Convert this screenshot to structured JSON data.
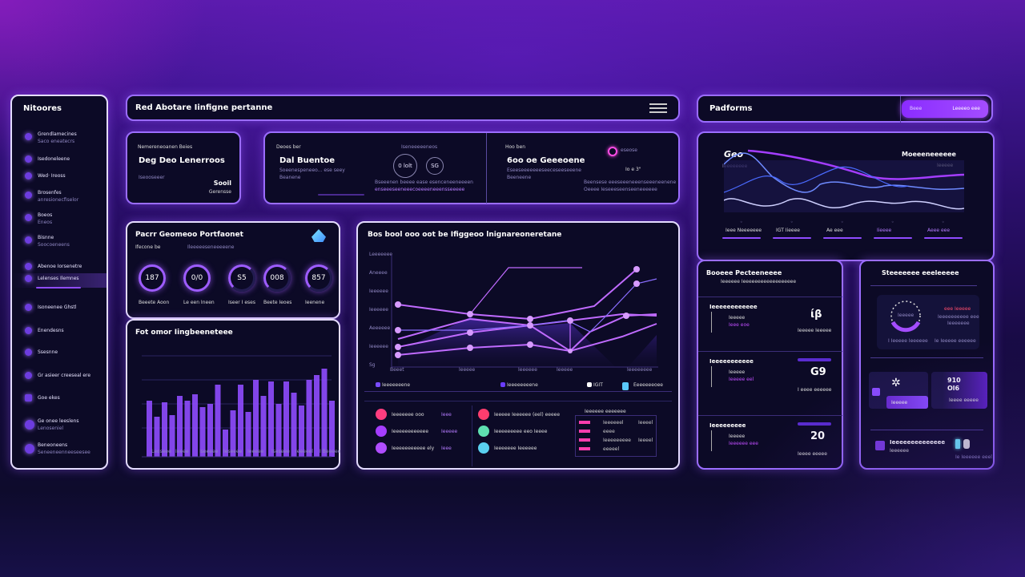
{
  "sidebar": {
    "title": "Nitoores",
    "items": [
      {
        "label": "Grendlamecines",
        "sub": "Saco eneatecrs"
      },
      {
        "label": "Isedoneleene",
        "sub": ""
      },
      {
        "label": "Wed· Ireoss",
        "sub": ""
      },
      {
        "label": "Brosenfes",
        "sub": "anresionecfiselor"
      },
      {
        "label": "Boeos",
        "sub": "Eneos"
      },
      {
        "label": "Bisnne",
        "sub": "Soocoeneens"
      },
      {
        "label": "Abenoe Iorsenetre",
        "sub": ""
      },
      {
        "label": "Lelenses Ilemnes",
        "sub": "",
        "active": true
      },
      {
        "label": "Isoneenee Ghstl",
        "sub": ""
      },
      {
        "label": "Enendesns",
        "sub": ""
      },
      {
        "label": "Ssesnne",
        "sub": ""
      },
      {
        "label": "Gr asieer creeseal ere",
        "sub": ""
      },
      {
        "label": "Goe ekes",
        "sub": ""
      },
      {
        "label": "Ge onee leeslens",
        "sub": "Lenoseniel"
      },
      {
        "label": "Beneoneens",
        "sub": "Seneeneenneeseesee"
      }
    ]
  },
  "header": {
    "title": "Red Abotare Iinfigne pertanne",
    "menu_icon": "hamburger-icon"
  },
  "kpi_cards": [
    {
      "label": "Nemereneoanen Beies",
      "value": "Deg Deo Lenerroos",
      "sub1": "eeneseneceecens",
      "sub2": "Iseooseeer",
      "foot_value": "Sooil",
      "foot_label": "Gerensse"
    },
    {
      "label": "Deoes ber",
      "value": "Dal Buentoe",
      "sub1": "Soeenespeneeo... ese seey",
      "sub2": "Beanene",
      "badge": "Iseneeeeeneos",
      "ring1": "0 lolt",
      "ring2": "SG",
      "foot1": "Bseeenen beeee ease esenceneeneeeen",
      "foot2": "enseeeseeneeecoeeeeneeensseeeee"
    },
    {
      "label": "Hoo ben",
      "value": "6oo oe Geeeoene",
      "sub1": "Eseeseeeeeeeseeceseeseeene",
      "sub2": "Beeneene",
      "badge": "eseose",
      "center": "Io e 3\"",
      "foot1": "Beensese eeeseeeneeenseeeneenene",
      "foot2": "Oeeee Ieseeeseenseeneeeeee"
    }
  ],
  "progress_panel": {
    "title": "Pacrr Geomeoo Portfaonet",
    "subtitle_left": "Ifecone be",
    "subtitle_right": "Ileeeeeseneeeeene",
    "rings": [
      {
        "value": "187",
        "label": "Beeete Aoon"
      },
      {
        "value": "0/0",
        "label": "Le een Ineen"
      },
      {
        "value": "S5",
        "label": "Iseer I eses"
      },
      {
        "value": "008",
        "label": "Beete Ieoes"
      },
      {
        "value": "857",
        "label": "Ieenene"
      }
    ]
  },
  "bar_panel": {
    "title": "Fot omor Iingbeeneteee",
    "x_labels": [
      "Leoseee",
      "Ieeee",
      "Iseeeee",
      "Ieseeee",
      "Ieeeee",
      "Iseseee",
      "Ieeeeel",
      "I Beeeee"
    ]
  },
  "line_panel": {
    "title": "Bos bool ooo oot be Ifiggeoo lnignareoneretane",
    "y_labels": [
      "Leeeeeee",
      "Aneeee",
      "Ieeeeee",
      "Ieeeeee",
      "Aeeeeee",
      "Ieeeeee",
      "Sg"
    ],
    "x_labels": [
      "Beeet",
      "Ieeeee",
      "Ieeeeee",
      "Ieeeee",
      "Ieeeeeeee"
    ],
    "legend": [
      {
        "label": "Ieeeeeeene",
        "color": "#7a4cff"
      },
      {
        "label": "Ieeeeeeeene",
        "color": "#6a3cff"
      },
      {
        "label": "IGIT",
        "color": "#ffffff"
      },
      {
        "label": "Eeeeeeeoee",
        "color": "#5ac8fa"
      }
    ],
    "list_left": [
      {
        "label": "Ieeeeeee ooo",
        "value": "Ieee",
        "color": "#ff3d7f"
      },
      {
        "label": "Ieeeeeeeeeeee",
        "value": "Ieeeee",
        "color": "#a53dff"
      },
      {
        "label": "Ieeeeeeeeeee ely",
        "value": "Ieee",
        "color": "#b04dff"
      }
    ],
    "list_mid": [
      {
        "label": "Ieeeee Ieeeeee (eel) eeeee",
        "color": "#ff3d6e"
      },
      {
        "label": "Ieeeeeeeee eeo Ieeee",
        "color": "#5ee0b0"
      },
      {
        "label": "Ieeeeeee  Ieeeeee",
        "color": "#5ad0f0"
      }
    ],
    "table_title": "Ieeeeee eeeeeee",
    "table_rows": [
      {
        "c1": "Ieeeeeel",
        "c2": "Ieeeel"
      },
      {
        "c1": "eeee",
        "c2": ""
      },
      {
        "c1": "Ieeeeeeeee",
        "c2": "Ieeeel"
      },
      {
        "c1": "eeeeel",
        "c2": ""
      }
    ]
  },
  "platform": {
    "title": "Padforms",
    "button_left": "Beee",
    "button_right": "Leeeeo eee",
    "chart_label": "Geo",
    "chart_sub": "Ieeeeeeee",
    "chart_title": "Moeeeneeeeee",
    "chart_title_sub": "Ieeeee",
    "stats": [
      {
        "label": "Ieee Neeeeeee"
      },
      {
        "label": "IGT Iieeee"
      },
      {
        "label": "Ae eee"
      },
      {
        "label": "Iieeee"
      },
      {
        "label": "Aeee eee"
      }
    ]
  },
  "detail_panel": {
    "title": "Booeee Pecteeneeee",
    "subtitle": "Ieeeeee   Ieeeeeeeeeeeeeeeeee",
    "rows": [
      {
        "title": "Ieeeeeeeeeeee",
        "small": "Ieeeee",
        "tag": "Ieee eoe",
        "value": "ίβ",
        "label": "Ieeeee Ieeeee"
      },
      {
        "title": "Ieeeeeeeeeee",
        "small": "Ieeeee",
        "tag": "Ieeeee eel",
        "value": "G9",
        "label": "I eeee eeeeee"
      },
      {
        "title": "Ieeeeeeeee",
        "small": "Ieeeee",
        "tag": "Ieeeeee eee",
        "value": "20",
        "label": "Ieeee eeeee"
      }
    ]
  },
  "summary_panel": {
    "title": "Steeeeeee eeeleeeee",
    "gauge_label": "Ieeeee",
    "gauge_note_red": "eee Ieeeee",
    "gauge_note": "Ieeeeeeeeee eee",
    "gauge_note2": "Ieeeeeee",
    "foot_left": "I Ieeeee   Ieeeeee",
    "foot_right": "Ie Ieeeee  eeeeee",
    "tile_left_badge": "Ieeeee",
    "tile_right_value": "910 Ol6",
    "tile_right_label": "Ieeee eeeee",
    "bottom_title": "Ieeeeeeeeeeeeee",
    "bottom_sub": "Ieeeeee",
    "bottom_right": "Ie Ieeeeee eeel"
  },
  "colors": {
    "accent": "#9b6dff",
    "panel_bg": "#0c0a26",
    "bar": "#8f4bff",
    "line": "#c06bff"
  }
}
